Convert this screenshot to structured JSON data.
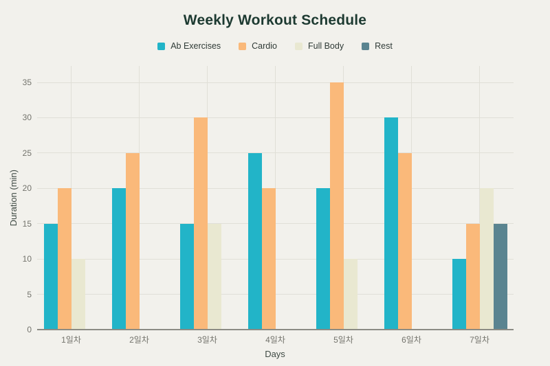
{
  "title": "Weekly Workout Schedule",
  "chart_data": {
    "type": "bar",
    "title": "Weekly Workout Schedule",
    "categories": [
      "1일차",
      "2일차",
      "3일차",
      "4일차",
      "5일차",
      "6일차",
      "7일차"
    ],
    "series": [
      {
        "name": "Ab Exercises",
        "color": "#22b4c8",
        "values": [
          15,
          20,
          15,
          25,
          20,
          30,
          10
        ]
      },
      {
        "name": "Cardio",
        "color": "#fab97a",
        "values": [
          20,
          25,
          30,
          20,
          35,
          25,
          15
        ]
      },
      {
        "name": "Full Body",
        "color": "#e9e8d1",
        "values": [
          10,
          0,
          15,
          0,
          10,
          0,
          20
        ]
      },
      {
        "name": "Rest",
        "color": "#5a8490",
        "values": [
          0,
          0,
          0,
          0,
          0,
          0,
          15
        ]
      }
    ],
    "xlabel": "Days",
    "ylabel": "Duration (min)",
    "ylim": [
      0,
      35
    ],
    "yticks": [
      0,
      5,
      10,
      15,
      20,
      25,
      30,
      35
    ],
    "grid": true,
    "legend_position": "top"
  },
  "colors": {
    "background": "#f2f1ec",
    "title_text": "#1d3a31",
    "legend_text": "#2f3a36",
    "tick_label": "#73736c",
    "axis_title": "#3f4a44",
    "grid_line": "#e0dfd7",
    "axis_line": "#8b8b84"
  }
}
